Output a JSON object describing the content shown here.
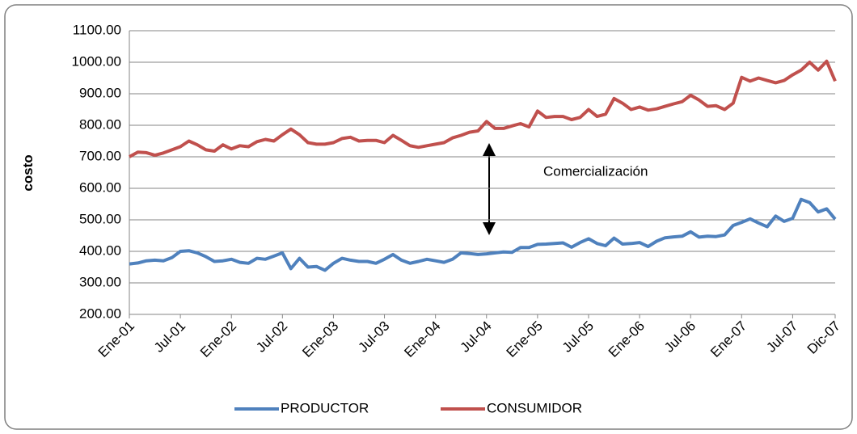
{
  "chart_data": {
    "type": "line",
    "y_label": "costo",
    "annotation": "Comercialización",
    "categories": [
      "Ene-01",
      null,
      null,
      null,
      null,
      null,
      "Jul-01",
      null,
      null,
      null,
      null,
      null,
      "Ene-02",
      null,
      null,
      null,
      null,
      null,
      "Jul-02",
      null,
      null,
      null,
      null,
      null,
      "Ene-03",
      null,
      null,
      null,
      null,
      null,
      "Jul-03",
      null,
      null,
      null,
      null,
      null,
      "Ene-04",
      null,
      null,
      null,
      null,
      null,
      "Jul-04",
      null,
      null,
      null,
      null,
      null,
      "Ene-05",
      null,
      null,
      null,
      null,
      null,
      "Jul-05",
      null,
      null,
      null,
      null,
      null,
      "Ene-06",
      null,
      null,
      null,
      null,
      null,
      "Jul-06",
      null,
      null,
      null,
      null,
      null,
      "Ene-07",
      null,
      null,
      null,
      null,
      null,
      "Jul-07",
      null,
      null,
      null,
      null,
      "Dic-07"
    ],
    "series": [
      {
        "name": "PRODUCTOR",
        "color": "#4f81bd",
        "values": [
          360,
          363,
          370,
          372,
          370,
          380,
          400,
          402,
          395,
          383,
          368,
          370,
          375,
          365,
          362,
          378,
          375,
          385,
          395,
          345,
          378,
          350,
          352,
          340,
          362,
          378,
          372,
          368,
          368,
          362,
          375,
          390,
          372,
          362,
          368,
          375,
          370,
          365,
          375,
          395,
          393,
          390,
          392,
          395,
          398,
          397,
          412,
          412,
          422,
          423,
          425,
          427,
          413,
          428,
          440,
          425,
          418,
          442,
          423,
          425,
          428,
          415,
          432,
          443,
          446,
          448,
          462,
          445,
          448,
          447,
          452,
          482,
          492,
          503,
          490,
          478,
          512,
          495,
          505,
          565,
          555,
          525,
          535,
          502
        ]
      },
      {
        "name": "CONSUMIDOR",
        "color": "#c0504d",
        "values": [
          700,
          715,
          713,
          705,
          712,
          722,
          732,
          750,
          738,
          722,
          718,
          738,
          725,
          735,
          732,
          748,
          755,
          750,
          770,
          788,
          770,
          745,
          740,
          740,
          745,
          758,
          762,
          750,
          752,
          752,
          745,
          768,
          752,
          735,
          730,
          735,
          740,
          745,
          760,
          768,
          778,
          782,
          812,
          790,
          790,
          798,
          805,
          795,
          845,
          825,
          828,
          828,
          818,
          825,
          850,
          828,
          835,
          885,
          870,
          850,
          858,
          848,
          852,
          860,
          868,
          875,
          895,
          880,
          860,
          862,
          850,
          870,
          952,
          940,
          950,
          942,
          935,
          942,
          960,
          975,
          1000,
          975,
          1003,
          940
        ]
      }
    ],
    "ylim": [
      200,
      1100
    ],
    "yticks": [
      {
        "value": 200,
        "label": "200.00"
      },
      {
        "value": 300,
        "label": "300.00"
      },
      {
        "value": 400,
        "label": "400.00"
      },
      {
        "value": 500,
        "label": "500.00"
      },
      {
        "value": 600,
        "label": "600.00"
      },
      {
        "value": 700,
        "label": "700.00"
      },
      {
        "value": 800,
        "label": "800.00"
      },
      {
        "value": 900,
        "label": "900.00"
      },
      {
        "value": 1000,
        "label": "1000.00"
      },
      {
        "value": 1100,
        "label": "1100.00"
      }
    ],
    "grid": true
  }
}
